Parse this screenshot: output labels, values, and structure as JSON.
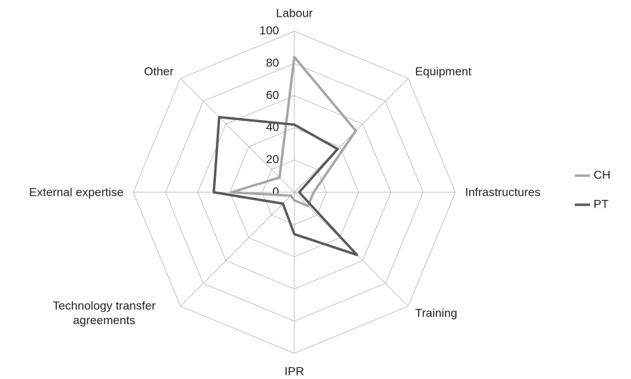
{
  "chart_data": {
    "type": "radar",
    "categories": [
      "Labour",
      "Equipment",
      "Infrastructures",
      "Training",
      "IPR",
      "Technology transfer agreements",
      "External expertise",
      "Other"
    ],
    "series": [
      {
        "name": "CH",
        "color": "#a6a6a6",
        "values": [
          84,
          54,
          12,
          12,
          5,
          3,
          39,
          13
        ]
      },
      {
        "name": "PT",
        "color": "#595959",
        "values": [
          42,
          38,
          3,
          55,
          26,
          10,
          50,
          66
        ]
      }
    ],
    "ylim": [
      0,
      100
    ],
    "yticks": [
      0,
      20,
      40,
      60,
      80,
      100
    ],
    "grid": true,
    "legend": "right"
  }
}
